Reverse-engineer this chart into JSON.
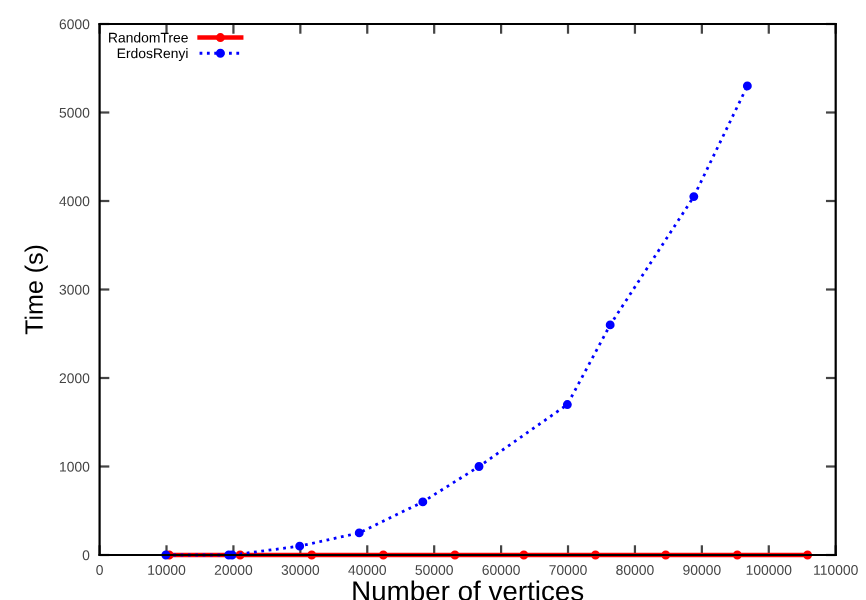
{
  "chart_data": {
    "type": "line",
    "xlabel": "Number of vertices",
    "ylabel": "Time (s)",
    "xlim": [
      0,
      110000
    ],
    "xticks": [
      0,
      10000,
      20000,
      30000,
      40000,
      50000,
      60000,
      70000,
      80000,
      90000,
      100000,
      110000
    ],
    "ylim": [
      0,
      6000
    ],
    "yticks": [
      0,
      1000,
      2000,
      3000,
      4000,
      5000,
      6000
    ],
    "legend": "top left",
    "marker": "circle",
    "grid": false,
    "series": [
      {
        "name": "RandomTree",
        "color": "#ff0000",
        "line_style": "solid",
        "x": [
          10400,
          21000,
          31700,
          42400,
          53100,
          63400,
          74100,
          84600,
          95300,
          105800
        ],
        "values": [
          0,
          0,
          0,
          0,
          0,
          0,
          0,
          0,
          0,
          0
        ]
      },
      {
        "name": "ErdosRenyi",
        "color": "#0000ff",
        "line_style": "dotted",
        "x": [
          9900,
          19300,
          19800,
          29900,
          38800,
          48300,
          56700,
          69900,
          76300,
          88800,
          96800
        ],
        "values": [
          0,
          0,
          0,
          100,
          250,
          600,
          1000,
          1700,
          2600,
          4050,
          5300
        ]
      }
    ]
  }
}
